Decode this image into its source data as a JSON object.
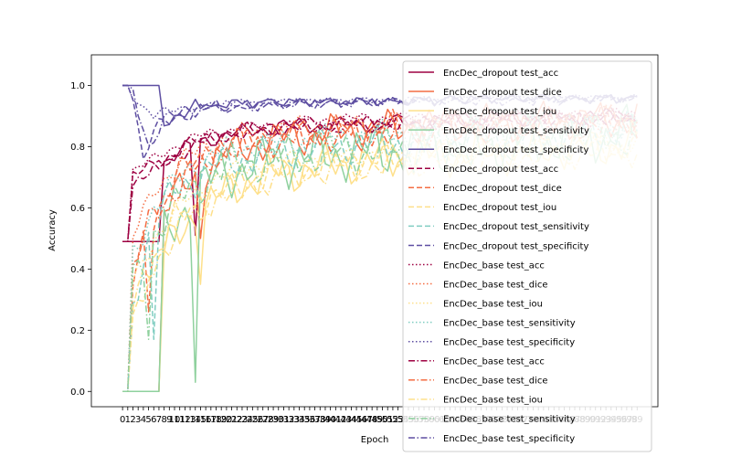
{
  "chart_data": {
    "type": "line",
    "xlabel": "Epoch",
    "ylabel": "Accuracy",
    "xlim": [
      0,
      99
    ],
    "ylim": [
      0,
      1.05
    ],
    "x_ticks": [
      0,
      1,
      2,
      3,
      4,
      5,
      6,
      7,
      8,
      9,
      10,
      11,
      12,
      13,
      14,
      15,
      16,
      17,
      18,
      19,
      20,
      21,
      22,
      23,
      24,
      25,
      26,
      27,
      28,
      29,
      30,
      31,
      32,
      33,
      34,
      35,
      36,
      37,
      38,
      39,
      40,
      41,
      42,
      43,
      44,
      45,
      46,
      47,
      48,
      49,
      50,
      51,
      52,
      53,
      54,
      55,
      56,
      57,
      58,
      59,
      60,
      61,
      62,
      63,
      64,
      65,
      66,
      67,
      68,
      69,
      70,
      71,
      72,
      73,
      74,
      75,
      76,
      77,
      78,
      79,
      80,
      81,
      82,
      83,
      84,
      85,
      86,
      87,
      88,
      89,
      90,
      91,
      92,
      93,
      94,
      95,
      96,
      97,
      98,
      99
    ],
    "y_ticks": [
      "0.0",
      "0.2",
      "0.4",
      "0.6",
      "0.8",
      "1.0"
    ],
    "legend_position": "right",
    "grid": false,
    "series": [
      {
        "name": "EncDec_dropout test_acc",
        "color": "#9e0142",
        "dash": "solid",
        "anchors": [
          [
            0,
            0.49
          ],
          [
            7,
            0.49
          ],
          [
            8,
            0.75
          ],
          [
            15,
            0.82
          ],
          [
            18,
            0.83
          ],
          [
            24,
            0.85
          ],
          [
            32,
            0.87
          ],
          [
            40,
            0.87
          ],
          [
            55,
            0.88
          ],
          [
            70,
            0.89
          ],
          [
            85,
            0.9
          ],
          [
            99,
            0.9
          ]
        ],
        "amp": 0.03,
        "dip": {
          "x": 14,
          "y": 0.51
        }
      },
      {
        "name": "EncDec_dropout test_dice",
        "color": "#f46d43",
        "dash": "solid",
        "anchors": [
          [
            0,
            0.0
          ],
          [
            7,
            0.0
          ],
          [
            8,
            0.6
          ],
          [
            14,
            0.7
          ],
          [
            18,
            0.76
          ],
          [
            24,
            0.8
          ],
          [
            32,
            0.83
          ],
          [
            45,
            0.85
          ],
          [
            60,
            0.87
          ],
          [
            80,
            0.88
          ],
          [
            99,
            0.89
          ]
        ],
        "amp": 0.07,
        "dip": {
          "x": 15,
          "y": 0.5
        }
      },
      {
        "name": "EncDec_dropout test_iou",
        "color": "#fee08b",
        "dash": "solid",
        "anchors": [
          [
            0,
            0.0
          ],
          [
            7,
            0.0
          ],
          [
            8,
            0.45
          ],
          [
            14,
            0.58
          ],
          [
            18,
            0.63
          ],
          [
            24,
            0.69
          ],
          [
            32,
            0.72
          ],
          [
            45,
            0.75
          ],
          [
            60,
            0.77
          ],
          [
            80,
            0.79
          ],
          [
            99,
            0.81
          ]
        ],
        "amp": 0.08,
        "dip": {
          "x": 15,
          "y": 0.35
        }
      },
      {
        "name": "EncDec_dropout test_sensitivity",
        "color": "#8fd19e",
        "dash": "solid",
        "anchors": [
          [
            0,
            0.0
          ],
          [
            7,
            0.0
          ],
          [
            8,
            0.5
          ],
          [
            14,
            0.65
          ],
          [
            18,
            0.7
          ],
          [
            24,
            0.74
          ],
          [
            32,
            0.76
          ],
          [
            45,
            0.78
          ],
          [
            60,
            0.8
          ],
          [
            80,
            0.82
          ],
          [
            99,
            0.85
          ]
        ],
        "amp": 0.1,
        "dip": {
          "x": 14,
          "y": 0.03
        }
      },
      {
        "name": "EncDec_dropout test_specificity",
        "color": "#5e4fa2",
        "dash": "solid",
        "anchors": [
          [
            0,
            1.0
          ],
          [
            7,
            1.0
          ],
          [
            8,
            0.88
          ],
          [
            12,
            0.92
          ],
          [
            18,
            0.95
          ],
          [
            30,
            0.96
          ],
          [
            50,
            0.96
          ],
          [
            70,
            0.97
          ],
          [
            99,
            0.97
          ]
        ],
        "amp": 0.03,
        "dip": null
      },
      {
        "name": "EncDec_dropout test_acc",
        "color": "#9e0142",
        "dash": "dashed",
        "anchors": [
          [
            0,
            0.49
          ],
          [
            1,
            0.49
          ],
          [
            2,
            0.7
          ],
          [
            6,
            0.74
          ],
          [
            12,
            0.8
          ],
          [
            18,
            0.84
          ],
          [
            28,
            0.86
          ],
          [
            40,
            0.87
          ],
          [
            60,
            0.88
          ],
          [
            80,
            0.89
          ],
          [
            99,
            0.9
          ]
        ],
        "amp": 0.03,
        "dip": null
      },
      {
        "name": "EncDec_dropout test_dice",
        "color": "#f46d43",
        "dash": "dashed",
        "anchors": [
          [
            0,
            0.0
          ],
          [
            1,
            0.0
          ],
          [
            2,
            0.35
          ],
          [
            5,
            0.55
          ],
          [
            10,
            0.7
          ],
          [
            18,
            0.79
          ],
          [
            28,
            0.83
          ],
          [
            40,
            0.85
          ],
          [
            60,
            0.87
          ],
          [
            80,
            0.88
          ],
          [
            99,
            0.89
          ]
        ],
        "amp": 0.06,
        "dip": {
          "x": 5,
          "y": 0.26
        }
      },
      {
        "name": "EncDec_dropout test_iou",
        "color": "#fee08b",
        "dash": "dashed",
        "anchors": [
          [
            0,
            0.0
          ],
          [
            1,
            0.0
          ],
          [
            2,
            0.22
          ],
          [
            5,
            0.4
          ],
          [
            10,
            0.56
          ],
          [
            18,
            0.64
          ],
          [
            28,
            0.7
          ],
          [
            40,
            0.74
          ],
          [
            60,
            0.77
          ],
          [
            80,
            0.79
          ],
          [
            99,
            0.8
          ]
        ],
        "amp": 0.06,
        "dip": null
      },
      {
        "name": "EncDec_dropout test_sensitivity",
        "color": "#80cdc1",
        "dash": "dashed",
        "anchors": [
          [
            0,
            0.0
          ],
          [
            1,
            0.0
          ],
          [
            2,
            0.3
          ],
          [
            5,
            0.5
          ],
          [
            10,
            0.66
          ],
          [
            18,
            0.74
          ],
          [
            28,
            0.78
          ],
          [
            40,
            0.8
          ],
          [
            60,
            0.82
          ],
          [
            80,
            0.84
          ],
          [
            99,
            0.86
          ]
        ],
        "amp": 0.07,
        "dip": {
          "x": 6,
          "y": 0.17
        }
      },
      {
        "name": "EncDec_dropout test_specificity",
        "color": "#5e4fa2",
        "dash": "dashed",
        "anchors": [
          [
            0,
            1.0
          ],
          [
            1,
            1.0
          ],
          [
            2,
            0.98
          ],
          [
            4,
            0.75
          ],
          [
            6,
            0.85
          ],
          [
            10,
            0.9
          ],
          [
            18,
            0.93
          ],
          [
            30,
            0.95
          ],
          [
            50,
            0.96
          ],
          [
            70,
            0.97
          ],
          [
            99,
            0.97
          ]
        ],
        "amp": 0.03,
        "dip": null
      },
      {
        "name": "EncDec_base test_acc",
        "color": "#9e0142",
        "dash": "dotted",
        "anchors": [
          [
            0,
            0.49
          ],
          [
            1,
            0.49
          ],
          [
            2,
            0.72
          ],
          [
            6,
            0.76
          ],
          [
            12,
            0.82
          ],
          [
            18,
            0.85
          ],
          [
            28,
            0.87
          ],
          [
            40,
            0.89
          ],
          [
            60,
            0.9
          ],
          [
            80,
            0.9
          ],
          [
            99,
            0.91
          ]
        ],
        "amp": 0.02,
        "dip": null
      },
      {
        "name": "EncDec_base test_dice",
        "color": "#f46d43",
        "dash": "dotted",
        "anchors": [
          [
            0,
            0.0
          ],
          [
            1,
            0.0
          ],
          [
            2,
            0.5
          ],
          [
            6,
            0.66
          ],
          [
            12,
            0.76
          ],
          [
            18,
            0.82
          ],
          [
            28,
            0.86
          ],
          [
            40,
            0.87
          ],
          [
            60,
            0.88
          ],
          [
            80,
            0.89
          ],
          [
            99,
            0.9
          ]
        ],
        "amp": 0.04,
        "dip": null
      },
      {
        "name": "EncDec_base test_iou",
        "color": "#fee08b",
        "dash": "dotted",
        "anchors": [
          [
            0,
            0.0
          ],
          [
            1,
            0.0
          ],
          [
            2,
            0.35
          ],
          [
            6,
            0.5
          ],
          [
            12,
            0.62
          ],
          [
            18,
            0.7
          ],
          [
            28,
            0.75
          ],
          [
            40,
            0.77
          ],
          [
            60,
            0.79
          ],
          [
            80,
            0.8
          ],
          [
            99,
            0.81
          ]
        ],
        "amp": 0.04,
        "dip": null
      },
      {
        "name": "EncDec_base test_sensitivity",
        "color": "#80cdc1",
        "dash": "dotted",
        "anchors": [
          [
            0,
            0.0
          ],
          [
            1,
            0.0
          ],
          [
            2,
            0.45
          ],
          [
            6,
            0.6
          ],
          [
            12,
            0.72
          ],
          [
            18,
            0.78
          ],
          [
            28,
            0.81
          ],
          [
            40,
            0.83
          ],
          [
            60,
            0.85
          ],
          [
            80,
            0.86
          ],
          [
            99,
            0.87
          ]
        ],
        "amp": 0.05,
        "dip": null
      },
      {
        "name": "EncDec_base test_specificity",
        "color": "#5e4fa2",
        "dash": "dotted",
        "anchors": [
          [
            0,
            1.0
          ],
          [
            1,
            1.0
          ],
          [
            2,
            0.97
          ],
          [
            6,
            0.9
          ],
          [
            12,
            0.93
          ],
          [
            18,
            0.95
          ],
          [
            30,
            0.96
          ],
          [
            50,
            0.96
          ],
          [
            70,
            0.97
          ],
          [
            99,
            0.97
          ]
        ],
        "amp": 0.02,
        "dip": null
      },
      {
        "name": "EncDec_base test_acc",
        "color": "#9e0142",
        "dash": "dashdot",
        "anchors": [
          [
            0,
            0.49
          ],
          [
            1,
            0.49
          ],
          [
            2,
            0.68
          ],
          [
            6,
            0.72
          ],
          [
            12,
            0.79
          ],
          [
            18,
            0.83
          ],
          [
            28,
            0.86
          ],
          [
            40,
            0.87
          ],
          [
            60,
            0.88
          ],
          [
            80,
            0.89
          ],
          [
            99,
            0.89
          ]
        ],
        "amp": 0.03,
        "dip": null
      },
      {
        "name": "EncDec_base test_dice",
        "color": "#f46d43",
        "dash": "dashdot",
        "anchors": [
          [
            0,
            0.0
          ],
          [
            1,
            0.0
          ],
          [
            2,
            0.4
          ],
          [
            6,
            0.58
          ],
          [
            12,
            0.7
          ],
          [
            18,
            0.78
          ],
          [
            28,
            0.82
          ],
          [
            40,
            0.84
          ],
          [
            60,
            0.86
          ],
          [
            80,
            0.87
          ],
          [
            99,
            0.88
          ]
        ],
        "amp": 0.06,
        "dip": null
      },
      {
        "name": "EncDec_base test_iou",
        "color": "#fee08b",
        "dash": "dashdot",
        "anchors": [
          [
            0,
            0.0
          ],
          [
            1,
            0.0
          ],
          [
            2,
            0.28
          ],
          [
            6,
            0.42
          ],
          [
            12,
            0.56
          ],
          [
            18,
            0.64
          ],
          [
            28,
            0.7
          ],
          [
            40,
            0.73
          ],
          [
            60,
            0.76
          ],
          [
            80,
            0.78
          ],
          [
            99,
            0.79
          ]
        ],
        "amp": 0.06,
        "dip": null
      },
      {
        "name": "EncDec_base test_sensitivity",
        "color": "#8fd19e",
        "dash": "dashdot",
        "anchors": [
          [
            0,
            0.0
          ],
          [
            1,
            0.0
          ],
          [
            2,
            0.35
          ],
          [
            6,
            0.52
          ],
          [
            12,
            0.64
          ],
          [
            18,
            0.72
          ],
          [
            28,
            0.76
          ],
          [
            40,
            0.78
          ],
          [
            60,
            0.8
          ],
          [
            80,
            0.82
          ],
          [
            99,
            0.84
          ]
        ],
        "amp": 0.08,
        "dip": {
          "x": 5,
          "y": 0.17
        }
      },
      {
        "name": "EncDec_base test_specificity",
        "color": "#5e4fa2",
        "dash": "dashdot",
        "anchors": [
          [
            0,
            1.0
          ],
          [
            1,
            1.0
          ],
          [
            2,
            0.99
          ],
          [
            5,
            0.8
          ],
          [
            8,
            0.88
          ],
          [
            12,
            0.92
          ],
          [
            18,
            0.94
          ],
          [
            30,
            0.95
          ],
          [
            50,
            0.96
          ],
          [
            70,
            0.96
          ],
          [
            99,
            0.97
          ]
        ],
        "amp": 0.03,
        "dip": null
      }
    ]
  }
}
